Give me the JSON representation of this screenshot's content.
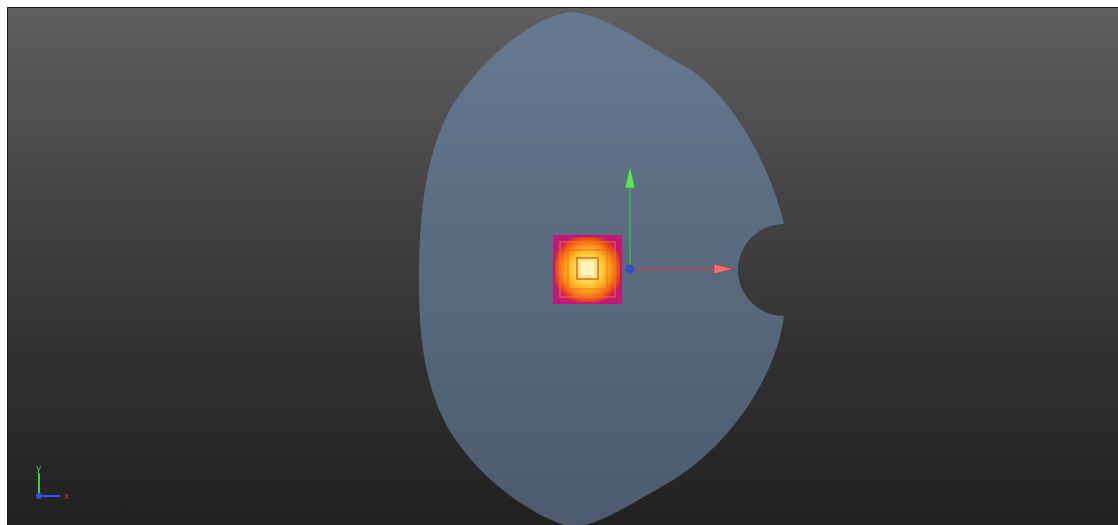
{
  "viewport": {
    "name": "3d-viewport",
    "background_top": "#5f5f5f",
    "background_bottom": "#212121"
  },
  "mesh": {
    "fill": "#5f7186",
    "description_icon": "surface-mesh"
  },
  "heatmap": {
    "colors": [
      "#c2187a",
      "#e8401c",
      "#f47a1a",
      "#ffb41f",
      "#ffe15a",
      "#fff3a8"
    ]
  },
  "gizmo": {
    "x_color": "#e04848",
    "y_color": "#3fc33f",
    "origin_color": "#3050c8"
  },
  "orientation_axes": {
    "x_label": "x",
    "y_label": "y",
    "x_color": "#e03030",
    "y_color": "#40d040",
    "z_color": "#3050ff"
  }
}
